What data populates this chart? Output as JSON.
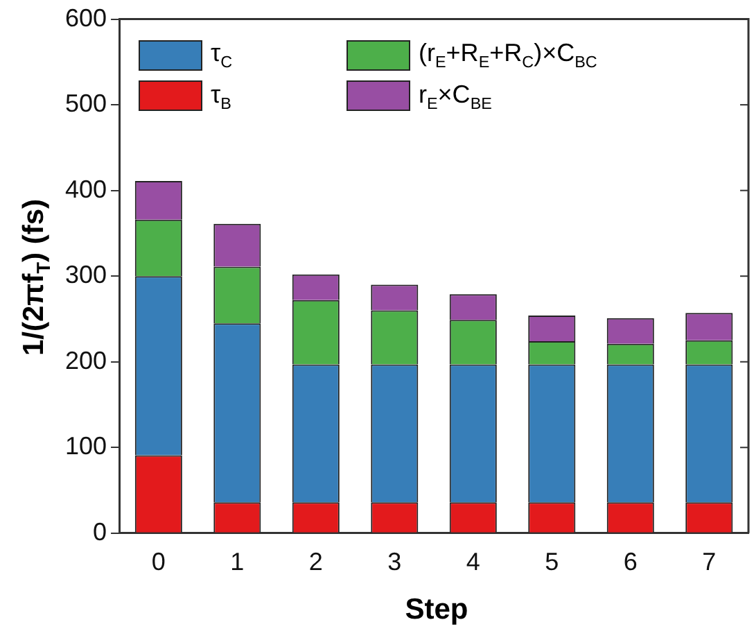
{
  "chart_data": {
    "type": "bar",
    "stacked": true,
    "xlabel": "Step",
    "ylabel": "1/(2πf$_{T}$) (fs)",
    "categories": [
      "0",
      "1",
      "2",
      "3",
      "4",
      "5",
      "6",
      "7"
    ],
    "ylim": [
      0,
      600
    ],
    "yticks": [
      0,
      100,
      200,
      300,
      400,
      500,
      600
    ],
    "grid": false,
    "legend": "top left",
    "series": [
      {
        "name": "τ$_{B}$",
        "color": "#e31a1c",
        "values": [
          91,
          36,
          36,
          36,
          36,
          36,
          36,
          36
        ]
      },
      {
        "name": "τ$_{C}$",
        "color": "#377eb8",
        "values": [
          209,
          209,
          161,
          161,
          161,
          161,
          161,
          161
        ]
      },
      {
        "name": "(r$_{E}$+R$_{E}$+R$_{C}$)×C$_{BC}$",
        "color": "#4daf4a",
        "values": [
          66,
          66,
          75,
          63,
          52,
          27,
          24,
          28
        ]
      },
      {
        "name": "r$_{E}$×C$_{BE}$",
        "color": "#984ea3",
        "values": [
          45,
          50,
          30,
          30,
          30,
          30,
          30,
          32
        ]
      }
    ]
  }
}
